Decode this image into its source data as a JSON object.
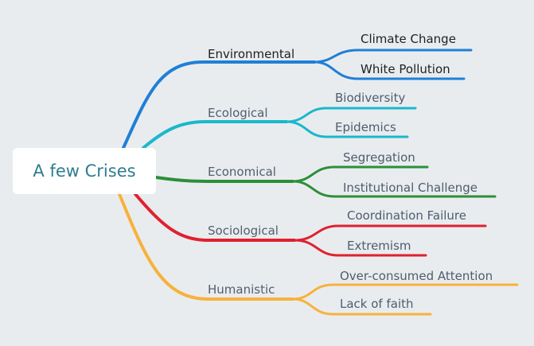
{
  "root": {
    "label": "A few Crises"
  },
  "branches": [
    {
      "label": "Environmental",
      "color": "#1f7fd6",
      "children": [
        "Climate Change",
        "White Pollution"
      ]
    },
    {
      "label": "Ecological",
      "color": "#1ab8cc",
      "children": [
        "Biodiversity",
        "Epidemics"
      ]
    },
    {
      "label": "Economical",
      "color": "#2c8f3a",
      "children": [
        "Segregation",
        "Institutional Challenge"
      ]
    },
    {
      "label": "Sociological",
      "color": "#e0212e",
      "children": [
        "Coordination Failure",
        "Extremism"
      ]
    },
    {
      "label": "Humanistic",
      "color": "#f7b23b",
      "children": [
        "Over-consumed Attention",
        "Lack of faith"
      ]
    }
  ]
}
